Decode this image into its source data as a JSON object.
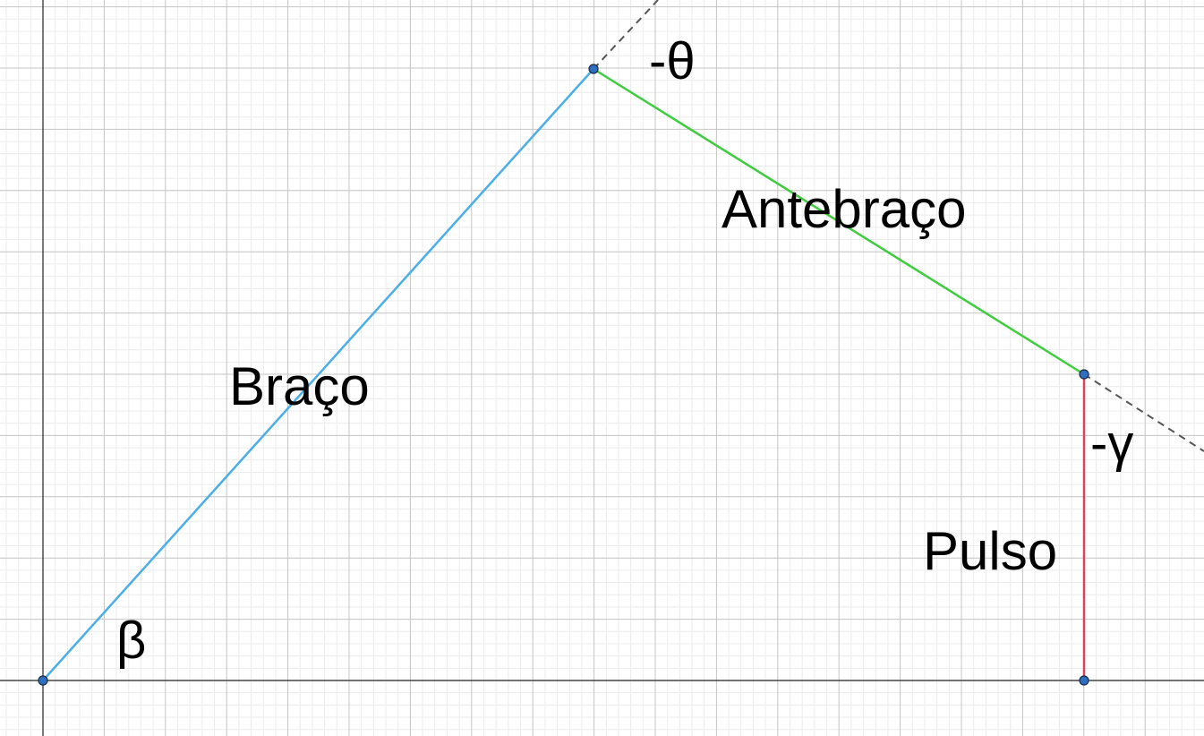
{
  "labels": {
    "arm": "Braço",
    "forearm": "Antebraço",
    "wrist": "Pulso",
    "angle_base": "β",
    "angle_elbow": "-θ",
    "angle_wrist": "-γ"
  },
  "colors": {
    "background": "#ffffff",
    "grid_minor": "#ececec",
    "grid_major": "#c4c4c4",
    "axis": "#222222",
    "arm": "#4aaee8",
    "forearm": "#3fcc3f",
    "wrist": "#e0405a",
    "extension": "#555555",
    "joint_fill": "#2f6fc0",
    "joint_stroke": "#1a2a44"
  }
}
